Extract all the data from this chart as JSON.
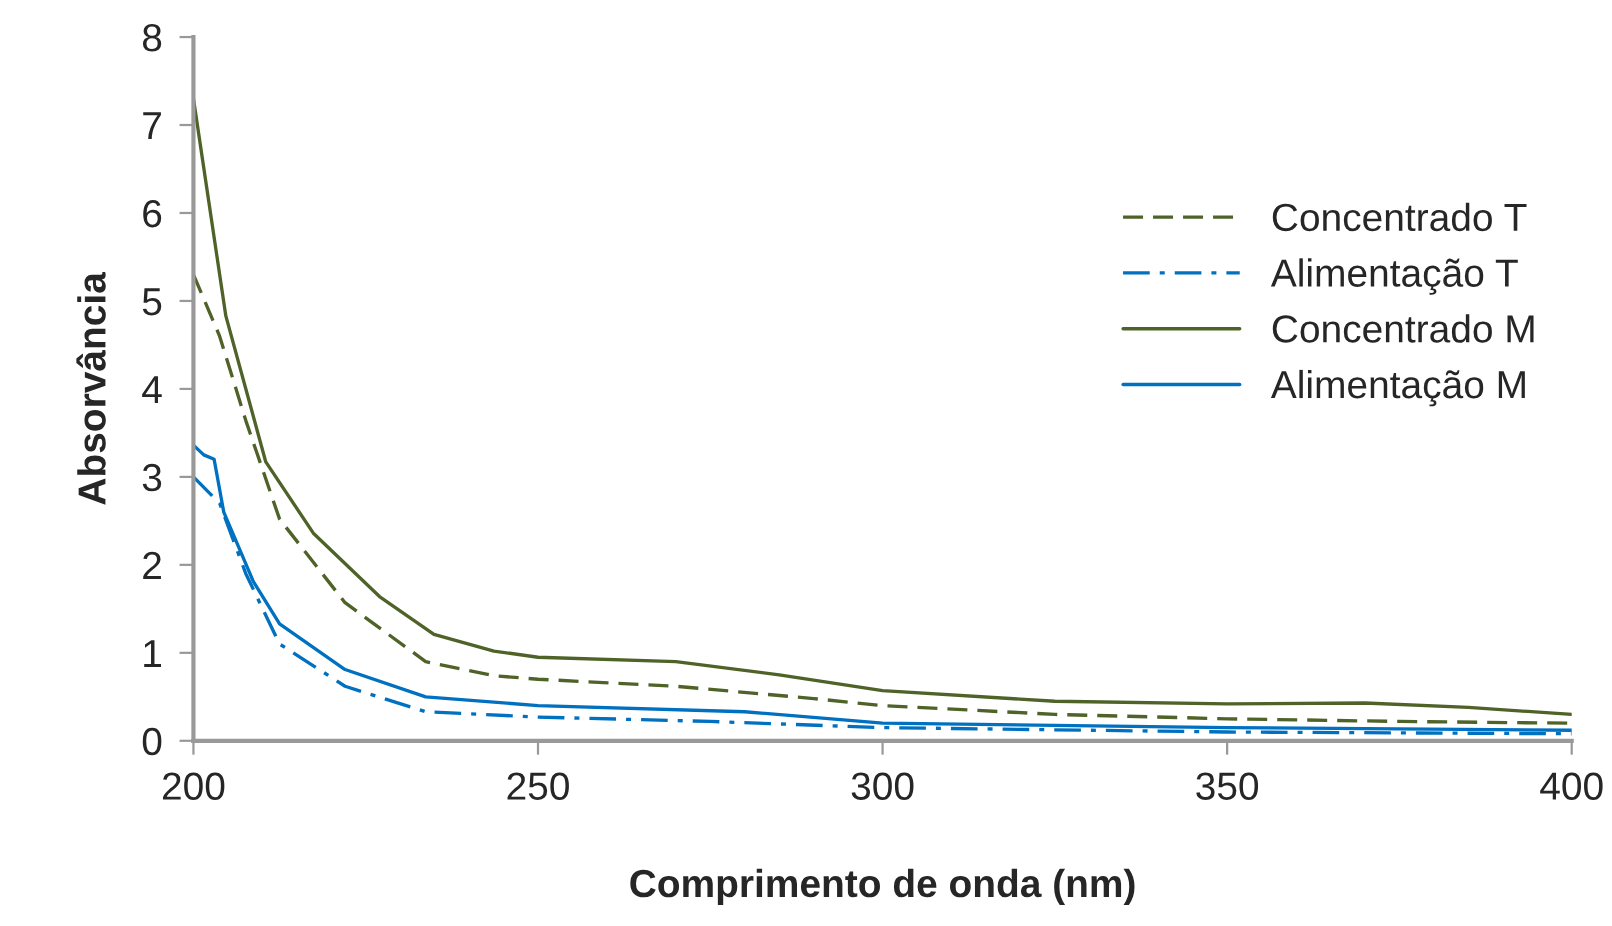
{
  "chart_data": {
    "type": "line",
    "xlabel": "Comprimento de onda (nm)",
    "ylabel": "Absorvância",
    "xlim": [
      200,
      400
    ],
    "xticks": [
      200,
      250,
      300,
      350,
      400
    ],
    "ylim": [
      0,
      8
    ],
    "yticks": [
      0,
      1,
      2,
      3,
      4,
      5,
      6,
      7,
      8
    ],
    "grid": false,
    "legend": "right",
    "marker": "none",
    "series": [
      {
        "name": "Concentrado T",
        "color": "#4f6228",
        "line_style": "dashed",
        "x": [
          200,
          203.8,
          207.6,
          212.5,
          222,
          233.7,
          243.6,
          250,
          270,
          290,
          300,
          325,
          350,
          375,
          400
        ],
        "values": [
          5.3,
          4.6,
          3.64,
          2.52,
          1.57,
          0.9,
          0.74,
          0.7,
          0.62,
          0.48,
          0.4,
          0.3,
          0.25,
          0.22,
          0.2
        ]
      },
      {
        "name": "Alimentação T",
        "color": "#0070c0",
        "line_style": "dashdot",
        "x": [
          200,
          203.8,
          207.6,
          212.5,
          222,
          233.7,
          250,
          275,
          300,
          350,
          400
        ],
        "values": [
          3.0,
          2.7,
          1.9,
          1.1,
          0.62,
          0.33,
          0.27,
          0.22,
          0.15,
          0.1,
          0.08
        ]
      },
      {
        "name": "Concentrado M",
        "color": "#4f6228",
        "line_style": "solid",
        "x": [
          200,
          204.7,
          210.5,
          217.4,
          227,
          234.9,
          243.6,
          250,
          270,
          285,
          300,
          325,
          350,
          370,
          385,
          400
        ],
        "values": [
          7.3,
          4.83,
          3.17,
          2.36,
          1.64,
          1.21,
          1.02,
          0.95,
          0.9,
          0.75,
          0.57,
          0.45,
          0.42,
          0.43,
          0.38,
          0.3
        ]
      },
      {
        "name": "Alimentação M",
        "color": "#0070c0",
        "line_style": "solid",
        "x": [
          200,
          201.5,
          203,
          204.4,
          208.7,
          212.5,
          222,
          233.7,
          250,
          280,
          300,
          350,
          400
        ],
        "values": [
          3.36,
          3.25,
          3.2,
          2.6,
          1.81,
          1.33,
          0.81,
          0.5,
          0.4,
          0.33,
          0.2,
          0.15,
          0.12
        ]
      }
    ]
  }
}
